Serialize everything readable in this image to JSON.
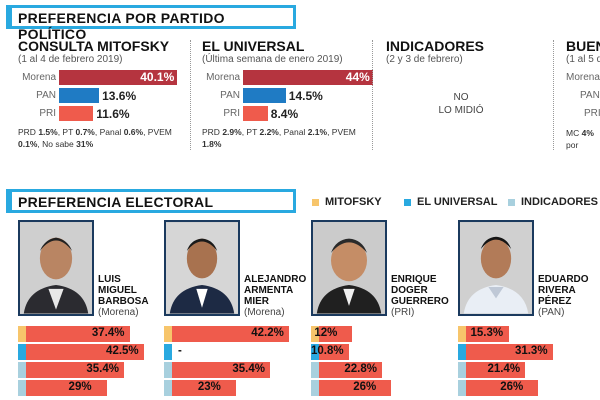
{
  "colors": {
    "accent": "#29a9e0",
    "morena": "#b5343f",
    "pan": "#1f7bc4",
    "pri": "#ef5b4c",
    "mitofsky": "#f7c56b",
    "universal": "#29a9e0",
    "indicadores": "#a8d0de"
  },
  "section1_title": "PREFERENCIA POR PARTIDO POLÍTICO",
  "section2_title": "PREFERENCIA ELECTORAL",
  "polls": [
    {
      "name": "CONSULTA MITOFSKY",
      "date": "(1 al 4 de febrero 2019)",
      "rows": [
        {
          "party": "Morena",
          "value": 40.1,
          "label": "40.1%"
        },
        {
          "party": "PAN",
          "value": 13.6,
          "label": "13.6%"
        },
        {
          "party": "PRI",
          "value": 11.6,
          "label": "11.6%"
        }
      ],
      "footnote_a": "PRD ",
      "footnote_a_v": "1.5%",
      "footnote_b": ", PT ",
      "footnote_b_v": "0.7%",
      "footnote_c": ", Panal ",
      "footnote_c_v": "0.6%",
      "footnote_d": ", PVEM",
      "footnote_e_v": "0.1%",
      "footnote_f": ", No sabe ",
      "footnote_f_v": "31%"
    },
    {
      "name": "EL UNIVERSAL",
      "date": "(Última semana de enero 2019)",
      "rows": [
        {
          "party": "Morena",
          "value": 44,
          "label": "44%"
        },
        {
          "party": "PAN",
          "value": 14.5,
          "label": "14.5%"
        },
        {
          "party": "PRI",
          "value": 8.4,
          "label": "8.4%"
        }
      ],
      "footnote_a": "PRD ",
      "footnote_a_v": "2.9%",
      "footnote_b": ", PT ",
      "footnote_b_v": "2.2%",
      "footnote_c": ", Panal ",
      "footnote_c_v": "2.1%",
      "footnote_d": ", PVEM",
      "footnote_e_v": "1.8%",
      "footnote_f": "",
      "footnote_f_v": ""
    },
    {
      "name": "INDICADORES",
      "date": "(2 y 3 de febrero)",
      "no_data": "NO\nLO MIDIÓ"
    },
    {
      "name": "BUEN",
      "date": "(1 al 5 d",
      "partial_rows": [
        "Morena",
        "PAN",
        "PRI"
      ],
      "footnote_a": "MC ",
      "footnote_a_v": "4%",
      "footnote_g": "por Pueb"
    }
  ],
  "legend": [
    {
      "label": "MITOFSKY",
      "color": "#f7c56b"
    },
    {
      "label": "EL UNIVERSAL",
      "color": "#29a9e0"
    },
    {
      "label": "INDICADORES",
      "color": "#a8d0de"
    }
  ],
  "chart_data": {
    "type": "bar",
    "categories": [
      "Luis Miguel Barbosa (Morena)",
      "Alejandro Armenta Mier (Morena)",
      "Enrique Doger Guerrero (PRI)",
      "Eduardo Rivera Pérez (PAN)"
    ],
    "series": [
      {
        "name": "MITOFSKY",
        "values": [
          37.4,
          42.2,
          12,
          15.3
        ]
      },
      {
        "name": "EL UNIVERSAL",
        "values": [
          42.5,
          null,
          10.8,
          31.3
        ]
      },
      {
        "name": "INDICADORES",
        "values": [
          35.4,
          35.4,
          22.8,
          21.4
        ]
      },
      {
        "name": "",
        "values": [
          29,
          23,
          26,
          26
        ]
      }
    ]
  },
  "candidates": [
    {
      "line1": "LUIS",
      "line2": "MIGUEL",
      "line3": "BARBOSA",
      "party": "(Morena)",
      "labels": [
        "37.4%",
        "42.5%",
        "35.4%",
        "29%"
      ]
    },
    {
      "line1": "ALEJANDRO",
      "line2": "ARMENTA",
      "line3": "MIER",
      "party": "(Morena)",
      "labels": [
        "42.2%",
        "-",
        "35.4%",
        "23%"
      ]
    },
    {
      "line1": "ENRIQUE",
      "line2": "DOGER",
      "line3": "GUERRERO",
      "party": "(PRI)",
      "labels": [
        "12%",
        "10.8%",
        "22.8%",
        "26%"
      ]
    },
    {
      "line1": "EDUARDO",
      "line2": "RIVERA",
      "line3": "PÉREZ",
      "party": "(PAN)",
      "labels": [
        "15.3%",
        "31.3%",
        "21.4%",
        "26%"
      ]
    }
  ]
}
